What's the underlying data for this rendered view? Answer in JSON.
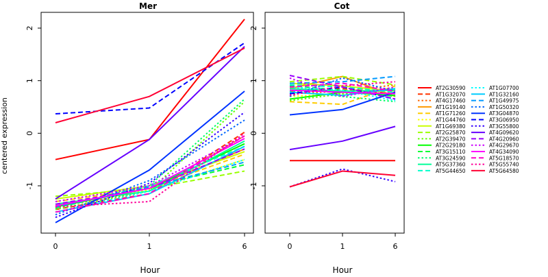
{
  "chart_data": {
    "type": "line",
    "ylabel": "centered expression",
    "grid": false,
    "legend_placement": "right",
    "series": [
      {
        "name": "AT2G30590",
        "color": "#ff0000",
        "dash": "solid"
      },
      {
        "name": "AT1G32070",
        "color": "#ff3300",
        "dash": "dashed"
      },
      {
        "name": "AT4G17460",
        "color": "#ff6600",
        "dash": "dotted"
      },
      {
        "name": "AT1G19140",
        "color": "#ff9900",
        "dash": "solid"
      },
      {
        "name": "AT1G71260",
        "color": "#ffcc00",
        "dash": "dashed"
      },
      {
        "name": "AT1G44760",
        "color": "#ffff00",
        "dash": "dotted"
      },
      {
        "name": "AT1G69380",
        "color": "#ccff00",
        "dash": "solid"
      },
      {
        "name": "AT2G25870",
        "color": "#99ff00",
        "dash": "dashed"
      },
      {
        "name": "AT2G39470",
        "color": "#66ff00",
        "dash": "dotted"
      },
      {
        "name": "AT2G29180",
        "color": "#00ff00",
        "dash": "solid"
      },
      {
        "name": "AT3G15110",
        "color": "#00ff33",
        "dash": "dashed"
      },
      {
        "name": "AT3G24590",
        "color": "#00ff66",
        "dash": "dotted"
      },
      {
        "name": "AT5G37360",
        "color": "#00ff99",
        "dash": "solid"
      },
      {
        "name": "AT5G44650",
        "color": "#00ffcc",
        "dash": "dashed"
      },
      {
        "name": "AT1G07700",
        "color": "#00ffff",
        "dash": "dotted"
      },
      {
        "name": "AT1G32160",
        "color": "#00ccff",
        "dash": "solid"
      },
      {
        "name": "AT1G49975",
        "color": "#0099ff",
        "dash": "dashed"
      },
      {
        "name": "AT1G50320",
        "color": "#0066ff",
        "dash": "dotted"
      },
      {
        "name": "AT3G04870",
        "color": "#0033ff",
        "dash": "solid"
      },
      {
        "name": "AT3G06950",
        "color": "#0000ff",
        "dash": "dashed"
      },
      {
        "name": "AT3G55800",
        "color": "#3300ff",
        "dash": "dotted"
      },
      {
        "name": "AT4G09620",
        "color": "#6600ff",
        "dash": "solid"
      },
      {
        "name": "AT4G20960",
        "color": "#9900ff",
        "dash": "dashed"
      },
      {
        "name": "AT4G29670",
        "color": "#cc00ff",
        "dash": "dotted"
      },
      {
        "name": "AT4G34090",
        "color": "#ff00ff",
        "dash": "solid"
      },
      {
        "name": "AT5G18570",
        "color": "#ff00cc",
        "dash": "dashed"
      },
      {
        "name": "AT5G55740",
        "color": "#ff0099",
        "dash": "dotted"
      },
      {
        "name": "AT5G64580",
        "color": "#ff0033",
        "dash": "solid"
      }
    ],
    "panels": [
      {
        "title": "Mer",
        "xlabel": "Hour",
        "x_ticks": [
          "0",
          "1",
          "6"
        ],
        "y_ticks": [
          2,
          1,
          0,
          -1
        ],
        "ylim": [
          -1.9,
          2.3
        ],
        "values": [
          [
            -0.5,
            -0.12,
            2.17
          ],
          [
            -1.45,
            -1.15,
            0.02
          ],
          [
            -1.4,
            -1.1,
            -0.05
          ],
          [
            -1.38,
            -1.05,
            -0.3
          ],
          [
            -1.3,
            -1.05,
            -0.4
          ],
          [
            -1.35,
            -1.08,
            -0.5
          ],
          [
            -1.25,
            -1.0,
            -0.35
          ],
          [
            -1.2,
            -1.05,
            -0.72
          ],
          [
            -1.45,
            -1.1,
            0.6
          ],
          [
            -1.4,
            -1.05,
            -0.2
          ],
          [
            -1.42,
            -1.02,
            -0.6
          ],
          [
            -1.43,
            -1.0,
            0.65
          ],
          [
            -1.35,
            -1.1,
            -0.15
          ],
          [
            -1.4,
            -1.0,
            -0.25
          ],
          [
            -1.5,
            -1.1,
            -0.5
          ],
          [
            -1.5,
            -1.15,
            -0.25
          ],
          [
            -1.4,
            -1.02,
            -0.55
          ],
          [
            -1.55,
            -0.9,
            0.25
          ],
          [
            -1.7,
            -0.7,
            0.8
          ],
          [
            0.37,
            0.48,
            1.72
          ],
          [
            -1.6,
            -0.95,
            0.4
          ],
          [
            -1.25,
            -0.12,
            1.65
          ],
          [
            -1.35,
            -1.05,
            -0.3
          ],
          [
            -1.3,
            -1.0,
            -0.05
          ],
          [
            -1.38,
            -1.05,
            -0.1
          ],
          [
            -1.5,
            -1.15,
            -0.05
          ],
          [
            -1.4,
            -1.3,
            0.0
          ],
          [
            0.2,
            0.7,
            1.62
          ]
        ]
      },
      {
        "title": "Cot",
        "xlabel": "Hour",
        "x_ticks": [
          "0",
          "1",
          "6"
        ],
        "y_ticks": [
          2,
          1,
          0,
          -1
        ],
        "ylim": [
          -1.9,
          2.3
        ],
        "values": [
          [
            -0.52,
            -0.52,
            -0.52
          ],
          [
            0.8,
            0.85,
            0.75
          ],
          [
            0.75,
            0.8,
            0.92
          ],
          [
            0.85,
            1.08,
            0.7
          ],
          [
            0.6,
            0.55,
            0.9
          ],
          [
            0.7,
            0.75,
            0.82
          ],
          [
            0.95,
            0.9,
            0.8
          ],
          [
            0.98,
            1.08,
            0.92
          ],
          [
            0.62,
            0.75,
            0.85
          ],
          [
            0.65,
            0.78,
            0.72
          ],
          [
            0.9,
            0.82,
            0.7
          ],
          [
            0.8,
            0.7,
            0.6
          ],
          [
            0.85,
            0.8,
            0.82
          ],
          [
            0.92,
            0.88,
            0.78
          ],
          [
            0.88,
            0.82,
            0.62
          ],
          [
            0.78,
            0.72,
            0.85
          ],
          [
            0.95,
            0.98,
            1.08
          ],
          [
            0.7,
            1.05,
            0.8
          ],
          [
            0.35,
            0.45,
            0.78
          ],
          [
            0.75,
            0.88,
            0.65
          ],
          [
            -1.02,
            -0.68,
            -0.92
          ],
          [
            -0.31,
            -0.15,
            0.13
          ],
          [
            1.1,
            0.88,
            0.65
          ],
          [
            1.05,
            0.7,
            0.88
          ],
          [
            0.82,
            0.78,
            0.75
          ],
          [
            0.88,
            0.95,
            0.8
          ],
          [
            0.72,
            0.9,
            0.98
          ],
          [
            -1.02,
            -0.72,
            -0.8
          ]
        ]
      }
    ]
  }
}
